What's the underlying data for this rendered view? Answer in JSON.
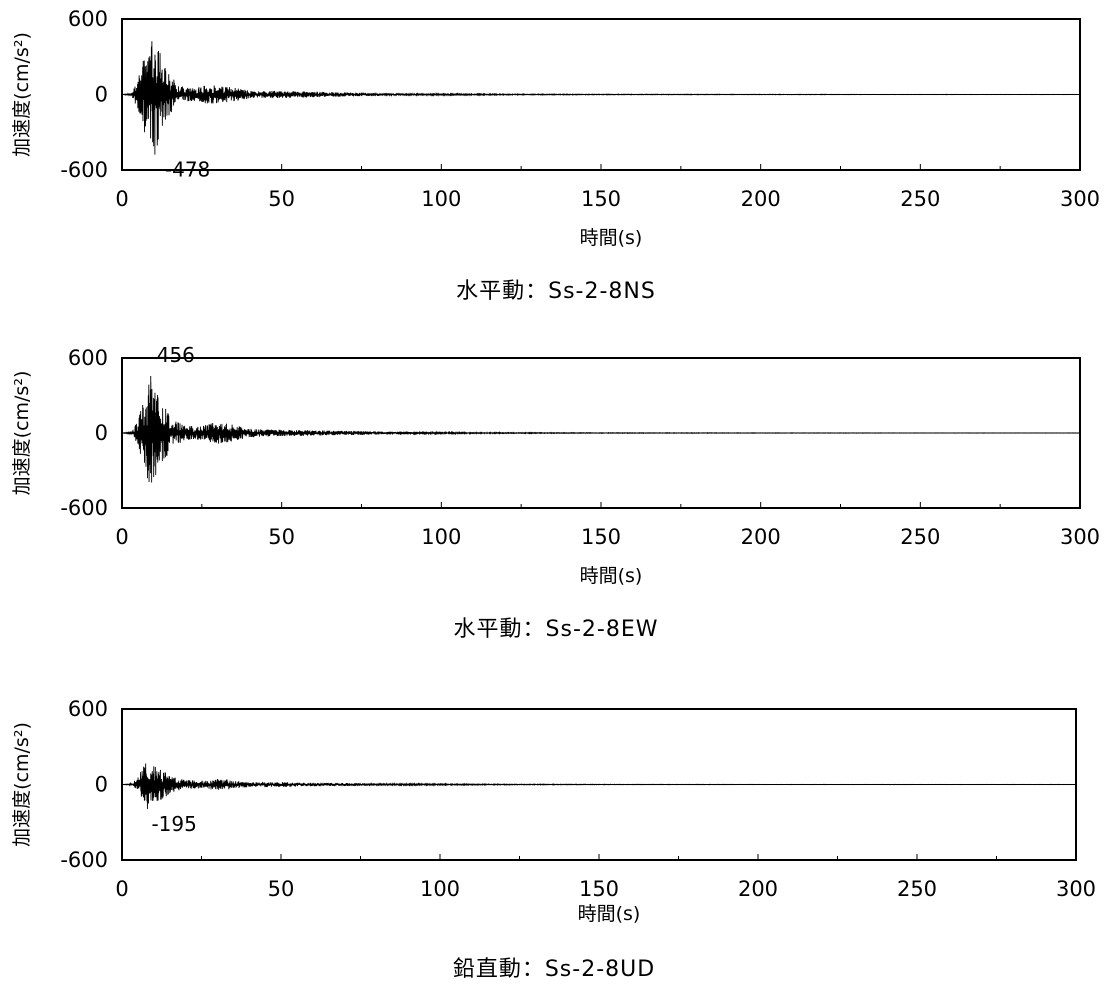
{
  "chart_data": [
    {
      "type": "line",
      "caption": "水平動：Ss-2-8NS",
      "xlabel": "時間(s)",
      "ylabel": "加速度(cm/s²)",
      "xlim": [
        0,
        300
      ],
      "ylim": [
        -600,
        600
      ],
      "x_ticks": [
        "0",
        "50",
        "100",
        "150",
        "200",
        "250",
        "300"
      ],
      "y_ticks": [
        "600",
        "0",
        "-600"
      ],
      "peak": {
        "label": "-478",
        "x": 10.3,
        "y": -478
      },
      "envelope": [
        [
          0,
          0
        ],
        [
          3,
          8
        ],
        [
          5,
          120
        ],
        [
          7,
          300
        ],
        [
          8.5,
          380
        ],
        [
          10.3,
          478
        ],
        [
          12,
          330
        ],
        [
          14,
          200
        ],
        [
          17,
          90
        ],
        [
          20,
          60
        ],
        [
          23,
          55
        ],
        [
          27,
          75
        ],
        [
          30,
          70
        ],
        [
          34,
          60
        ],
        [
          38,
          40
        ],
        [
          42,
          25
        ],
        [
          45,
          30
        ],
        [
          50,
          28
        ],
        [
          55,
          25
        ],
        [
          60,
          22
        ],
        [
          70,
          17
        ],
        [
          80,
          12
        ],
        [
          90,
          8
        ],
        [
          100,
          5
        ],
        [
          120,
          3
        ],
        [
          150,
          2
        ],
        [
          200,
          1.5
        ],
        [
          250,
          1
        ],
        [
          300,
          1
        ]
      ]
    },
    {
      "type": "line",
      "caption": "水平動：Ss-2-8EW",
      "xlabel": "時間(s)",
      "ylabel": "加速度(cm/s²)",
      "xlim": [
        0,
        300
      ],
      "ylim": [
        -600,
        600
      ],
      "x_ticks": [
        "0",
        "50",
        "100",
        "150",
        "200",
        "250",
        "300"
      ],
      "y_ticks": [
        "600",
        "0",
        "-600"
      ],
      "peak": {
        "label": "456",
        "x": 9,
        "y": 456
      },
      "envelope": [
        [
          0,
          0
        ],
        [
          3,
          8
        ],
        [
          5,
          100
        ],
        [
          7,
          280
        ],
        [
          9,
          456
        ],
        [
          11,
          320
        ],
        [
          13,
          230
        ],
        [
          16,
          110
        ],
        [
          20,
          60
        ],
        [
          25,
          55
        ],
        [
          28,
          80
        ],
        [
          31,
          90
        ],
        [
          35,
          65
        ],
        [
          40,
          35
        ],
        [
          45,
          28
        ],
        [
          50,
          26
        ],
        [
          55,
          24
        ],
        [
          60,
          22
        ],
        [
          70,
          18
        ],
        [
          80,
          12
        ],
        [
          90,
          8
        ],
        [
          100,
          5
        ],
        [
          120,
          3
        ],
        [
          150,
          2
        ],
        [
          200,
          1.5
        ],
        [
          250,
          1
        ],
        [
          300,
          1
        ]
      ]
    },
    {
      "type": "line",
      "caption": "鉛直動：Ss-2-8UD",
      "xlabel": "時間(s)",
      "ylabel": "加速度(cm/s²)",
      "xlim": [
        0,
        300
      ],
      "ylim": [
        -600,
        600
      ],
      "x_ticks": [
        "0",
        "50",
        "100",
        "150",
        "200",
        "250",
        "300"
      ],
      "y_ticks": [
        "600",
        "0",
        "-600"
      ],
      "peak": {
        "label": "-195",
        "x": 8,
        "y": -195
      },
      "envelope": [
        [
          0,
          0
        ],
        [
          3,
          6
        ],
        [
          5,
          60
        ],
        [
          7,
          150
        ],
        [
          8,
          195
        ],
        [
          10,
          160
        ],
        [
          13,
          110
        ],
        [
          16,
          60
        ],
        [
          20,
          35
        ],
        [
          25,
          30
        ],
        [
          30,
          45
        ],
        [
          33,
          40
        ],
        [
          38,
          25
        ],
        [
          42,
          18
        ],
        [
          45,
          22
        ],
        [
          50,
          20
        ],
        [
          60,
          14
        ],
        [
          70,
          12
        ],
        [
          80,
          9
        ],
        [
          90,
          6
        ],
        [
          100,
          4
        ],
        [
          120,
          2.5
        ],
        [
          150,
          1.5
        ],
        [
          200,
          1
        ],
        [
          250,
          1
        ],
        [
          300,
          1
        ]
      ]
    }
  ]
}
